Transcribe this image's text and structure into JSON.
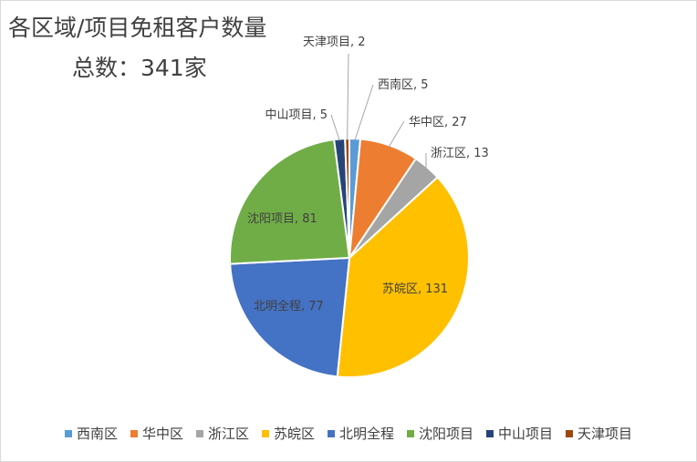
{
  "chart_data": {
    "type": "pie",
    "title": "各区域/项目免租客户数量",
    "subtitle": "总数：341家",
    "legend_position": "bottom",
    "slices": [
      {
        "label": "西南区",
        "value": 5,
        "color": "#5B9BD5",
        "data_label": "西南区, 5"
      },
      {
        "label": "华中区",
        "value": 27,
        "color": "#ED7D31",
        "data_label": "华中区, 27"
      },
      {
        "label": "浙江区",
        "value": 13,
        "color": "#A5A5A5",
        "data_label": "浙江区, 13"
      },
      {
        "label": "苏皖区",
        "value": 131,
        "color": "#FFC000",
        "data_label": "苏皖区, 131"
      },
      {
        "label": "北明全程",
        "value": 77,
        "color": "#4472C4",
        "data_label": "北明全程, 77"
      },
      {
        "label": "沈阳项目",
        "value": 81,
        "color": "#70AD47",
        "data_label": "沈阳项目, 81"
      },
      {
        "label": "中山项目",
        "value": 5,
        "color": "#264478",
        "data_label": "中山项目, 5"
      },
      {
        "label": "天津项目",
        "value": 2,
        "color": "#9E480E",
        "data_label": "天津项目, 2"
      }
    ]
  }
}
